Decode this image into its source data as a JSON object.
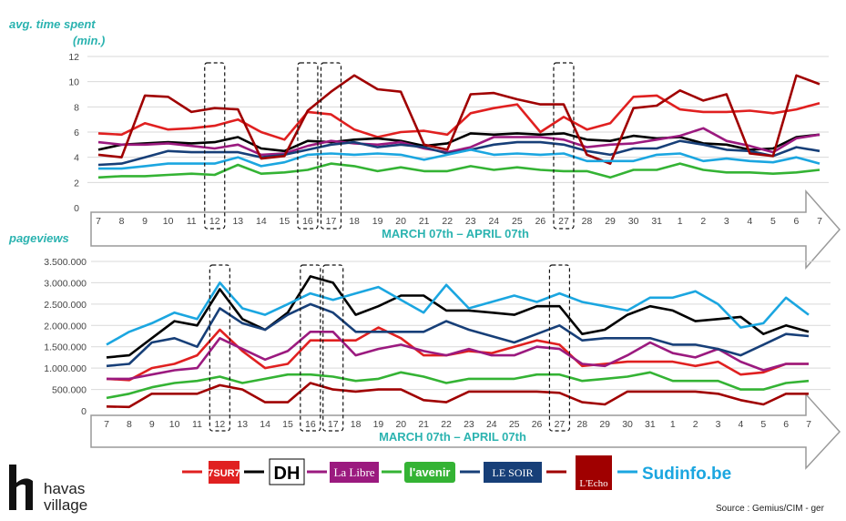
{
  "brand": {
    "line1": "havas",
    "line2": "village",
    "mark": "h"
  },
  "source": "Source : Gemius/CIM - ger",
  "colors": {
    "accent": "#2bb3b0",
    "grid": "#d9d9d9",
    "arrow_fill": "#ffffff",
    "arrow_stroke": "#9a9a9a"
  },
  "legend": [
    {
      "name": "7sur7",
      "color": "#e02020",
      "logo": "7SUR7"
    },
    {
      "name": "DH",
      "color": "#000000",
      "logo": "DH"
    },
    {
      "name": "La Libre",
      "color": "#9b1a7f",
      "logo": "La Libre"
    },
    {
      "name": "l'avenir",
      "color": "#34b334",
      "logo": "l'avenir"
    },
    {
      "name": "Le Soir",
      "color": "#173f78",
      "logo": "LE SOIR"
    },
    {
      "name": "L'Echo",
      "color": "#a00000",
      "logo": "L'Echo"
    },
    {
      "name": "Sudinfo.be",
      "color": "#1ba6e0",
      "logo": "Sudinfo.be"
    }
  ],
  "chart_data": [
    {
      "type": "line",
      "title": "avg. time spent",
      "subtitle": "(min.)",
      "xlabel": "MARCH 07th – APRIL 07th",
      "ylabel": "",
      "x": [
        "7",
        "8",
        "9",
        "10",
        "11",
        "12",
        "13",
        "14",
        "15",
        "16",
        "17",
        "18",
        "19",
        "20",
        "21",
        "22",
        "23",
        "24",
        "25",
        "26",
        "27",
        "28",
        "29",
        "30",
        "31",
        "1",
        "2",
        "3",
        "4",
        "5",
        "6",
        "7"
      ],
      "ylim": [
        0,
        12
      ],
      "yticks": [
        "0",
        "2",
        "4",
        "6",
        "8",
        "10",
        "12"
      ],
      "highlighted": [
        "12",
        "16",
        "17",
        "27"
      ],
      "series": [
        {
          "name": "7sur7",
          "values": [
            5.9,
            5.8,
            6.7,
            6.2,
            6.3,
            6.5,
            7.0,
            6.0,
            5.4,
            7.6,
            7.4,
            6.2,
            5.6,
            6.0,
            6.1,
            5.8,
            7.5,
            7.9,
            8.2,
            6.0,
            7.2,
            6.2,
            6.7,
            8.8,
            8.9,
            7.8,
            7.6,
            7.6,
            7.7,
            7.5,
            7.8,
            8.3
          ]
        },
        {
          "name": "DH",
          "values": [
            4.6,
            5.0,
            5.1,
            5.2,
            5.1,
            5.2,
            5.6,
            4.7,
            4.5,
            5.3,
            5.2,
            5.4,
            5.5,
            5.3,
            4.9,
            5.1,
            5.9,
            5.8,
            5.9,
            5.8,
            5.9,
            5.4,
            5.3,
            5.7,
            5.5,
            5.6,
            5.1,
            5.0,
            4.6,
            4.7,
            5.6,
            5.8
          ]
        },
        {
          "name": "La Libre",
          "values": [
            5.2,
            5.0,
            5.0,
            5.1,
            4.9,
            4.7,
            5.0,
            4.2,
            4.3,
            4.9,
            5.3,
            5.1,
            5.0,
            5.2,
            4.7,
            4.4,
            4.8,
            5.6,
            5.6,
            5.6,
            5.4,
            4.8,
            5.0,
            5.1,
            5.4,
            5.7,
            6.3,
            5.3,
            4.9,
            4.4,
            5.5,
            5.8
          ]
        },
        {
          "name": "l'avenir",
          "values": [
            2.4,
            2.5,
            2.5,
            2.6,
            2.7,
            2.6,
            3.4,
            2.7,
            2.8,
            3.0,
            3.5,
            3.3,
            2.9,
            3.2,
            2.9,
            2.9,
            3.3,
            3.0,
            3.2,
            3.0,
            2.9,
            2.9,
            2.4,
            3.0,
            3.0,
            3.5,
            3.0,
            2.8,
            2.8,
            2.7,
            2.8,
            3.0
          ]
        },
        {
          "name": "Le Soir",
          "values": [
            3.4,
            3.5,
            4.0,
            4.5,
            4.4,
            4.4,
            4.4,
            4.0,
            4.2,
            4.6,
            5.0,
            5.2,
            4.8,
            5.0,
            4.8,
            4.3,
            4.6,
            5.0,
            5.2,
            5.2,
            5.0,
            4.5,
            4.2,
            4.7,
            4.7,
            5.3,
            5.0,
            4.6,
            4.5,
            4.1,
            4.8,
            4.5
          ]
        },
        {
          "name": "L'Echo",
          "values": [
            4.2,
            4.0,
            8.9,
            8.8,
            7.6,
            7.9,
            7.8,
            3.9,
            4.1,
            7.7,
            9.2,
            10.5,
            9.4,
            9.2,
            5.0,
            4.6,
            9.0,
            9.1,
            8.6,
            8.2,
            8.2,
            4.2,
            3.5,
            7.9,
            8.1,
            9.3,
            8.5,
            9.0,
            4.3,
            4.1,
            10.5,
            9.8
          ]
        },
        {
          "name": "Sudinfo.be",
          "values": [
            3.1,
            3.1,
            3.3,
            3.5,
            3.5,
            3.5,
            4.0,
            3.3,
            3.6,
            4.2,
            4.3,
            4.2,
            4.3,
            4.2,
            3.8,
            4.2,
            4.6,
            4.2,
            4.3,
            4.2,
            4.3,
            3.7,
            3.7,
            3.7,
            4.2,
            4.3,
            3.7,
            3.9,
            3.7,
            3.6,
            4.0,
            3.5
          ]
        }
      ]
    },
    {
      "type": "line",
      "title": "pageviews",
      "xlabel": "MARCH 07th – APRIL 07th",
      "ylabel": "",
      "x": [
        "7",
        "8",
        "9",
        "10",
        "11",
        "12",
        "13",
        "14",
        "15",
        "16",
        "17",
        "18",
        "19",
        "20",
        "21",
        "22",
        "23",
        "24",
        "25",
        "26",
        "27",
        "28",
        "29",
        "30",
        "31",
        "1",
        "2",
        "3",
        "4",
        "5",
        "6",
        "7"
      ],
      "ylim": [
        0,
        3500000
      ],
      "yticks": [
        "0",
        "500.000",
        "1.000.000",
        "1.500.000",
        "2.000.000",
        "2.500.000",
        "3.000.000",
        "3.500.000"
      ],
      "highlighted": [
        "12",
        "16",
        "17",
        "27"
      ],
      "series": [
        {
          "name": "7sur7",
          "values": [
            750000,
            720000,
            1000000,
            1100000,
            1300000,
            1900000,
            1400000,
            1000000,
            1100000,
            1650000,
            1650000,
            1650000,
            1950000,
            1700000,
            1300000,
            1300000,
            1400000,
            1350000,
            1500000,
            1650000,
            1550000,
            1050000,
            1100000,
            1150000,
            1150000,
            1150000,
            1050000,
            1150000,
            850000,
            900000,
            1100000,
            1100000
          ]
        },
        {
          "name": "DH",
          "values": [
            1250000,
            1300000,
            1700000,
            2100000,
            2000000,
            2850000,
            2150000,
            1900000,
            2300000,
            3150000,
            3000000,
            2250000,
            2450000,
            2700000,
            2700000,
            2350000,
            2350000,
            2300000,
            2250000,
            2450000,
            2450000,
            1800000,
            1900000,
            2250000,
            2450000,
            2350000,
            2100000,
            2150000,
            2200000,
            1800000,
            2000000,
            1850000
          ]
        },
        {
          "name": "La Libre",
          "values": [
            750000,
            750000,
            850000,
            950000,
            1000000,
            1700000,
            1450000,
            1200000,
            1400000,
            1850000,
            1850000,
            1300000,
            1450000,
            1550000,
            1400000,
            1300000,
            1450000,
            1300000,
            1300000,
            1500000,
            1450000,
            1100000,
            1050000,
            1300000,
            1600000,
            1350000,
            1250000,
            1450000,
            1150000,
            950000,
            1100000,
            1100000
          ]
        },
        {
          "name": "l'avenir",
          "values": [
            300000,
            400000,
            550000,
            650000,
            700000,
            800000,
            650000,
            750000,
            850000,
            850000,
            800000,
            700000,
            750000,
            900000,
            800000,
            650000,
            750000,
            750000,
            750000,
            850000,
            850000,
            700000,
            750000,
            800000,
            900000,
            700000,
            700000,
            700000,
            500000,
            500000,
            650000,
            700000
          ]
        },
        {
          "name": "Le Soir",
          "values": [
            1050000,
            1100000,
            1600000,
            1700000,
            1500000,
            2400000,
            2050000,
            1900000,
            2250000,
            2500000,
            2300000,
            1850000,
            1850000,
            1850000,
            1850000,
            2100000,
            1900000,
            1750000,
            1600000,
            1800000,
            2000000,
            1650000,
            1700000,
            1700000,
            1700000,
            1550000,
            1550000,
            1450000,
            1300000,
            1550000,
            1800000,
            1750000
          ]
        },
        {
          "name": "L'Echo",
          "values": [
            100000,
            90000,
            400000,
            400000,
            400000,
            600000,
            500000,
            200000,
            200000,
            650000,
            500000,
            450000,
            500000,
            500000,
            250000,
            200000,
            450000,
            450000,
            450000,
            450000,
            420000,
            200000,
            150000,
            450000,
            450000,
            450000,
            450000,
            400000,
            250000,
            150000,
            400000,
            400000
          ]
        },
        {
          "name": "Sudinfo.be",
          "values": [
            1550000,
            1850000,
            2050000,
            2300000,
            2150000,
            3000000,
            2400000,
            2250000,
            2500000,
            2750000,
            2600000,
            2750000,
            2900000,
            2600000,
            2300000,
            2950000,
            2400000,
            2550000,
            2700000,
            2550000,
            2750000,
            2550000,
            2450000,
            2350000,
            2650000,
            2650000,
            2800000,
            2500000,
            1950000,
            2050000,
            2650000,
            2250000
          ]
        }
      ]
    }
  ]
}
